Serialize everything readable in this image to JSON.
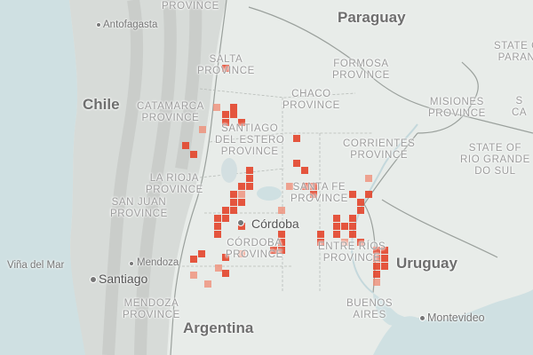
{
  "colors": {
    "land": "#e8ece9",
    "ocean": "#cfe0e2",
    "cell_dark": "#e3452b",
    "cell_light": "#f08a72"
  },
  "labels": {
    "countries": {
      "paraguay": "Paraguay",
      "chile": "Chile",
      "uruguay": "Uruguay",
      "argentina": "Argentina"
    },
    "provinces": {
      "top": "PROVINCE",
      "salta": "SALTA\nPROVINCE",
      "formosa": "FORMOSA\nPROVINCE",
      "chaco": "CHACO\nPROVINCE",
      "catamarca": "CATAMARCA\nPROVINCE",
      "santiago": "SANTIAGO\nDEL ESTERO\nPROVINCE",
      "misiones": "MISIONES\nPROVINCE",
      "corrientes": "CORRIENTES\nPROVINCE",
      "rio_grande": "STATE OF\nRIO GRANDE\nDO SUL",
      "parana": "STATE OF\nPARANÁ",
      "sc": "S\nCA",
      "la_rioja": "LA RIOJA\nPROVINCE",
      "san_juan": "SAN JUAN\nPROVINCE",
      "santa_fe": "SANTA FE\nPROVINCE",
      "cordoba_prov": "CÓRDOBA\nPROVINCE",
      "entre_rios": "ENTRE RÍOS\nPROVINCE",
      "mendoza_prov": "MENDOZA\nPROVINCE",
      "buenos_aires": "BUENOS\nAIRES"
    },
    "cities": {
      "antofagasta": "Antofagasta",
      "cordoba": "Córdoba",
      "mendoza": "Mendoza",
      "santiago": "Santiago",
      "vina": "Viña del Mar",
      "montevideo": "Montevideo"
    }
  },
  "heat_cells": [
    [
      250,
      73,
      1
    ],
    [
      240,
      117,
      0
    ],
    [
      259,
      117,
      1
    ],
    [
      250,
      125,
      1
    ],
    [
      259,
      125,
      1
    ],
    [
      250,
      134,
      1
    ],
    [
      268,
      134,
      1
    ],
    [
      224,
      142,
      0
    ],
    [
      205,
      160,
      1
    ],
    [
      214,
      170,
      1
    ],
    [
      330,
      152,
      1
    ],
    [
      330,
      180,
      1
    ],
    [
      339,
      188,
      1
    ],
    [
      277,
      188,
      1
    ],
    [
      277,
      197,
      1
    ],
    [
      268,
      206,
      1
    ],
    [
      277,
      206,
      1
    ],
    [
      259,
      215,
      1
    ],
    [
      268,
      215,
      0
    ],
    [
      259,
      224,
      1
    ],
    [
      268,
      224,
      1
    ],
    [
      250,
      233,
      1
    ],
    [
      259,
      233,
      1
    ],
    [
      241,
      242,
      1
    ],
    [
      250,
      242,
      1
    ],
    [
      241,
      251,
      1
    ],
    [
      241,
      260,
      1
    ],
    [
      268,
      251,
      1
    ],
    [
      313,
      233,
      0
    ],
    [
      322,
      206,
      0
    ],
    [
      340,
      206,
      1
    ],
    [
      349,
      206,
      1
    ],
    [
      349,
      215,
      1
    ],
    [
      313,
      260,
      1
    ],
    [
      313,
      269,
      1
    ],
    [
      304,
      278,
      1
    ],
    [
      313,
      278,
      1
    ],
    [
      411,
      197,
      0
    ],
    [
      411,
      215,
      1
    ],
    [
      393,
      215,
      1
    ],
    [
      402,
      224,
      1
    ],
    [
      402,
      233,
      1
    ],
    [
      393,
      242,
      1
    ],
    [
      375,
      242,
      1
    ],
    [
      375,
      251,
      1
    ],
    [
      384,
      251,
      1
    ],
    [
      393,
      251,
      1
    ],
    [
      375,
      260,
      1
    ],
    [
      393,
      260,
      1
    ],
    [
      357,
      260,
      1
    ],
    [
      357,
      269,
      1
    ],
    [
      384,
      269,
      0
    ],
    [
      402,
      269,
      1
    ],
    [
      420,
      278,
      1
    ],
    [
      429,
      278,
      1
    ],
    [
      420,
      287,
      1
    ],
    [
      429,
      287,
      1
    ],
    [
      420,
      296,
      1
    ],
    [
      429,
      296,
      1
    ],
    [
      420,
      305,
      1
    ],
    [
      420,
      314,
      0
    ],
    [
      223,
      282,
      1
    ],
    [
      214,
      288,
      1
    ],
    [
      250,
      286,
      1
    ],
    [
      268,
      282,
      0
    ],
    [
      242,
      298,
      0
    ],
    [
      250,
      304,
      1
    ],
    [
      230,
      316,
      0
    ],
    [
      214,
      306,
      0
    ]
  ]
}
